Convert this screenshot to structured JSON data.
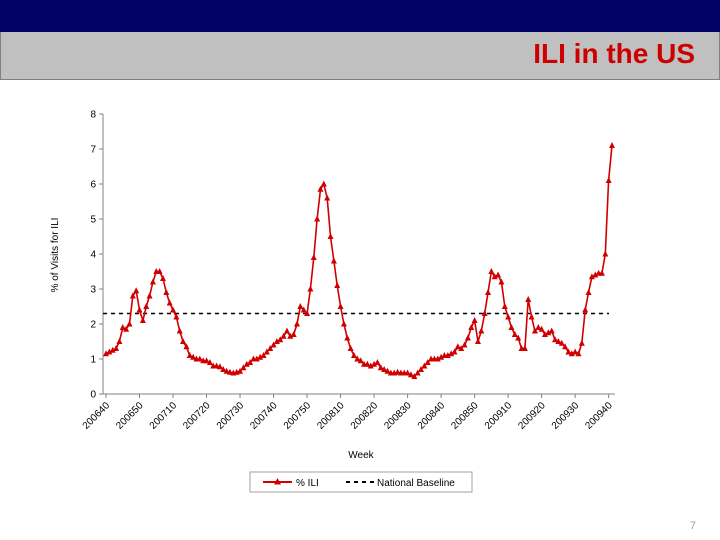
{
  "slide": {
    "title": "ILI in the US",
    "page_number": "7"
  },
  "colors": {
    "header_bar": "#000066",
    "title_band": "#c0c0c0",
    "title_text": "#cc0000",
    "series": "#d00000"
  },
  "chart_data": {
    "type": "line",
    "xlabel": "Week",
    "ylabel": "% of Visits for ILI",
    "ylim": [
      0,
      8
    ],
    "yticks": [
      0,
      1,
      2,
      3,
      4,
      5,
      6,
      7,
      8
    ],
    "xtick_labels": [
      "200640",
      "200650",
      "200710",
      "200720",
      "200730",
      "200740",
      "200750",
      "200810",
      "200820",
      "200830",
      "200840",
      "200850",
      "200910",
      "200920",
      "200930",
      "200940"
    ],
    "grid": false,
    "legend_position": "bottom",
    "series": [
      {
        "name": "% ILI",
        "style": "solid red line with triangle markers",
        "values": [
          1.15,
          1.2,
          1.25,
          1.3,
          1.5,
          1.9,
          1.85,
          2.0,
          2.8,
          2.95,
          2.4,
          2.1,
          2.5,
          2.8,
          3.2,
          3.5,
          3.5,
          3.3,
          2.9,
          2.6,
          2.4,
          2.2,
          1.8,
          1.5,
          1.35,
          1.1,
          1.05,
          1.0,
          1.0,
          0.95,
          0.95,
          0.9,
          0.8,
          0.8,
          0.78,
          0.7,
          0.65,
          0.62,
          0.6,
          0.62,
          0.65,
          0.75,
          0.85,
          0.9,
          1.0,
          1.0,
          1.05,
          1.1,
          1.2,
          1.3,
          1.4,
          1.5,
          1.55,
          1.65,
          1.8,
          1.65,
          1.7,
          2.0,
          2.5,
          2.4,
          2.3,
          3.0,
          3.9,
          5.0,
          5.85,
          6.0,
          5.6,
          4.5,
          3.8,
          3.1,
          2.5,
          2.0,
          1.6,
          1.3,
          1.1,
          1.0,
          0.95,
          0.85,
          0.85,
          0.8,
          0.85,
          0.9,
          0.75,
          0.7,
          0.65,
          0.6,
          0.6,
          0.62,
          0.6,
          0.6,
          0.6,
          0.55,
          0.5,
          0.6,
          0.7,
          0.8,
          0.9,
          1.0,
          1.0,
          1.0,
          1.05,
          1.1,
          1.1,
          1.15,
          1.2,
          1.35,
          1.3,
          1.4,
          1.6,
          1.9,
          2.1,
          1.5,
          1.8,
          2.3,
          2.9,
          3.5,
          3.35,
          3.4,
          3.2,
          2.5,
          2.2,
          1.9,
          1.7,
          1.6,
          1.3,
          1.3,
          2.7,
          2.2,
          1.8,
          1.9,
          1.85,
          1.7,
          1.75,
          1.8,
          1.55,
          1.5,
          1.45,
          1.35,
          1.2,
          1.15,
          1.2,
          1.15,
          1.45,
          2.4,
          2.9,
          3.35,
          3.4,
          3.45,
          3.45,
          4.0,
          6.1,
          7.1
        ]
      },
      {
        "name": "National Baseline",
        "style": "black dashed line",
        "value": 2.3
      }
    ]
  }
}
